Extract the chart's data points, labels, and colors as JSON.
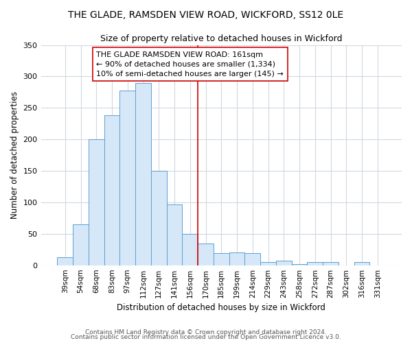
{
  "title": "THE GLADE, RAMSDEN VIEW ROAD, WICKFORD, SS12 0LE",
  "subtitle": "Size of property relative to detached houses in Wickford",
  "xlabel": "Distribution of detached houses by size in Wickford",
  "ylabel": "Number of detached properties",
  "bar_labels": [
    "39sqm",
    "54sqm",
    "68sqm",
    "83sqm",
    "97sqm",
    "112sqm",
    "127sqm",
    "141sqm",
    "156sqm",
    "170sqm",
    "185sqm",
    "199sqm",
    "214sqm",
    "229sqm",
    "243sqm",
    "258sqm",
    "272sqm",
    "287sqm",
    "302sqm",
    "316sqm",
    "331sqm"
  ],
  "bar_heights": [
    13,
    65,
    200,
    238,
    278,
    290,
    150,
    97,
    50,
    35,
    19,
    20,
    19,
    5,
    7,
    2,
    5,
    5,
    0,
    5,
    0
  ],
  "bar_color": "#d6e8f7",
  "bar_edgecolor": "#5a9fd4",
  "vline_color": "#cc0000",
  "vline_x": 8.5,
  "annotation_text": "THE GLADE RAMSDEN VIEW ROAD: 161sqm\n← 90% of detached houses are smaller (1,334)\n10% of semi-detached houses are larger (145) →",
  "annotation_box_edgecolor": "#cc0000",
  "annotation_box_facecolor": "#ffffff",
  "ylim": [
    0,
    350
  ],
  "yticks": [
    0,
    50,
    100,
    150,
    200,
    250,
    300,
    350
  ],
  "footer1": "Contains HM Land Registry data © Crown copyright and database right 2024.",
  "footer2": "Contains public sector information licensed under the Open Government Licence v3.0.",
  "bg_color": "#ffffff",
  "grid_color": "#d0d8e0"
}
